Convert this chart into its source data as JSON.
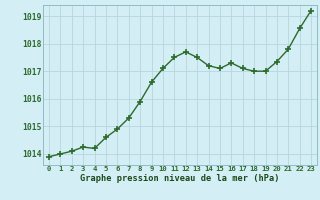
{
  "x": [
    0,
    1,
    2,
    3,
    4,
    5,
    6,
    7,
    8,
    9,
    10,
    11,
    12,
    13,
    14,
    15,
    16,
    17,
    18,
    19,
    20,
    21,
    22,
    23
  ],
  "y": [
    1013.9,
    1014.0,
    1014.1,
    1014.25,
    1014.2,
    1014.6,
    1014.9,
    1015.3,
    1015.9,
    1016.6,
    1017.1,
    1017.5,
    1017.7,
    1017.5,
    1017.2,
    1017.1,
    1017.3,
    1017.1,
    1017.0,
    1017.0,
    1017.35,
    1017.8,
    1018.55,
    1019.2
  ],
  "ylim": [
    1013.6,
    1019.4
  ],
  "yticks": [
    1014,
    1015,
    1016,
    1017,
    1018,
    1019
  ],
  "xticks": [
    0,
    1,
    2,
    3,
    4,
    5,
    6,
    7,
    8,
    9,
    10,
    11,
    12,
    13,
    14,
    15,
    16,
    17,
    18,
    19,
    20,
    21,
    22,
    23
  ],
  "xlabel": "Graphe pression niveau de la mer (hPa)",
  "line_color": "#2d6a2d",
  "bg_color": "#d4eef5",
  "grid_color": "#b8d4dc",
  "label_color": "#1a4a1a",
  "tick_color": "#2d6a2d",
  "marker": "+",
  "linewidth": 1.0,
  "markersize": 4.5,
  "markeredgewidth": 1.2
}
